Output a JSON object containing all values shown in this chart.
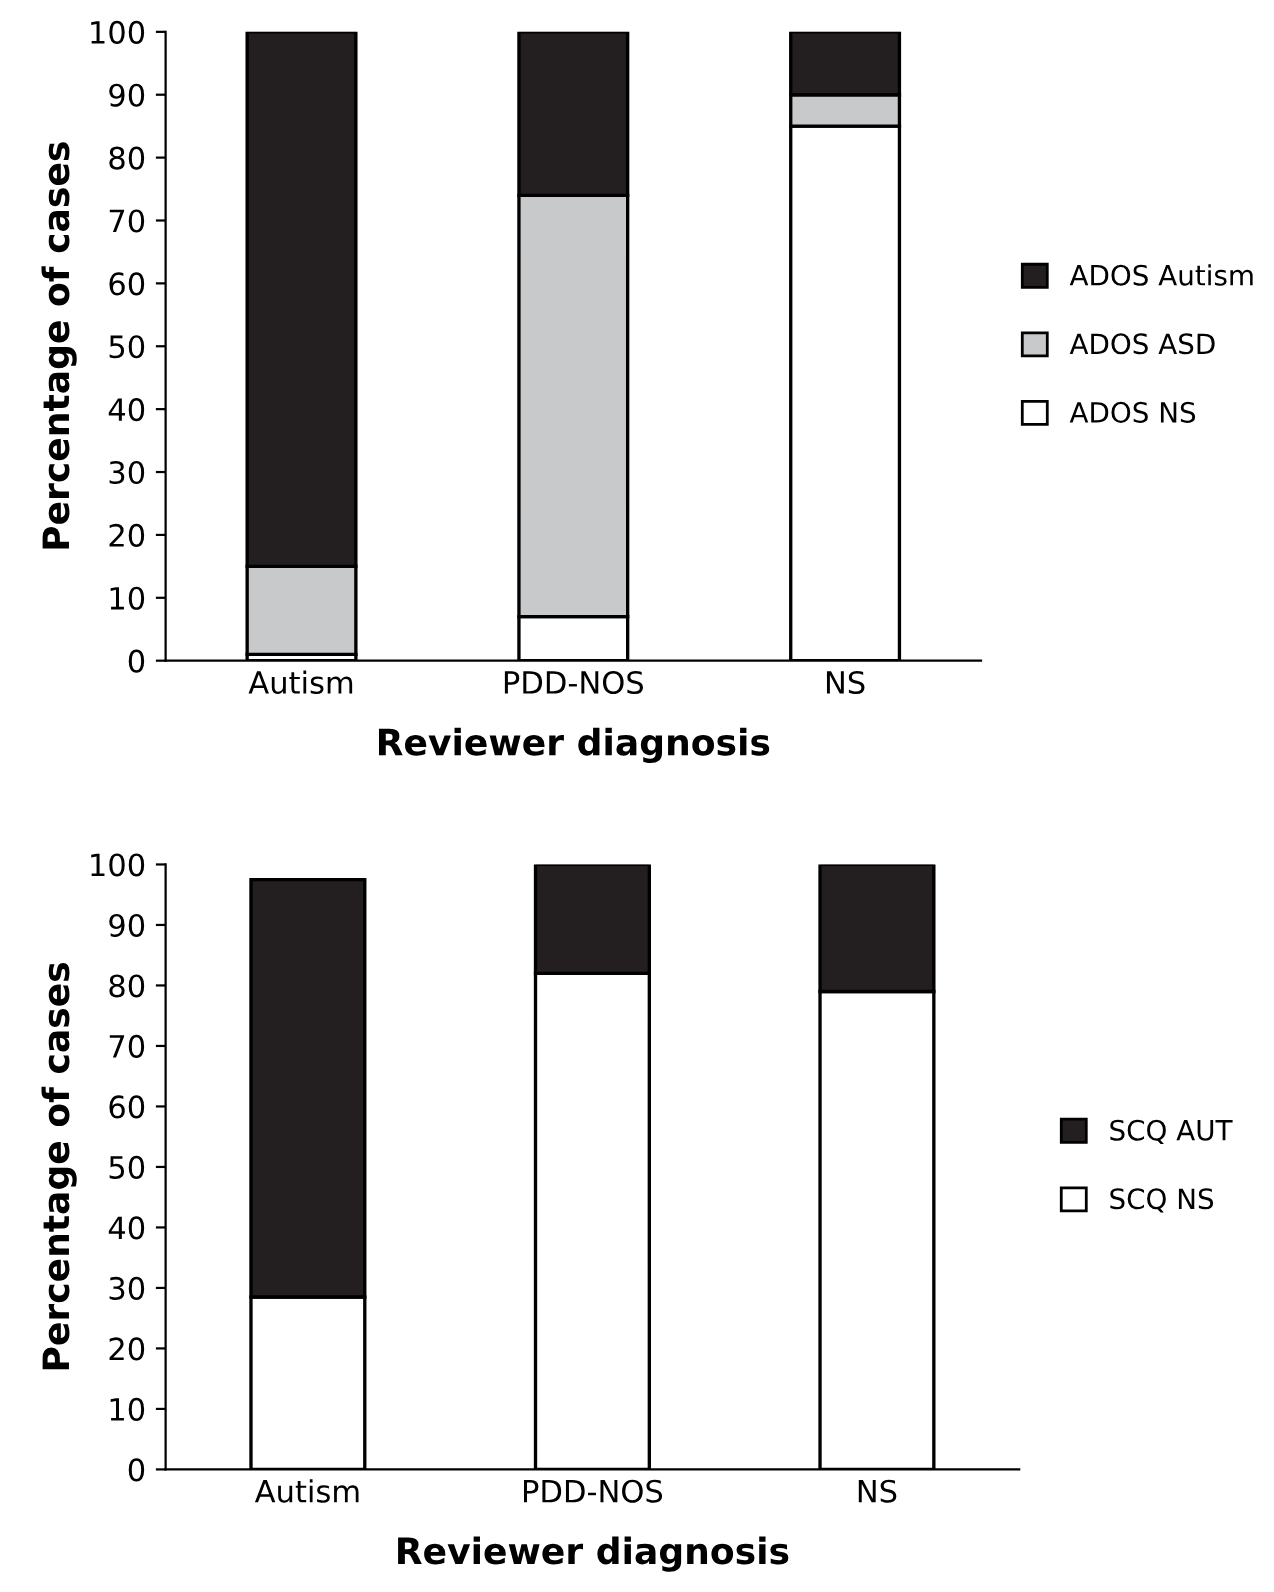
{
  "chart_data": [
    {
      "type": "bar",
      "stacked": true,
      "categories": [
        "Autism",
        "PDD-NOS",
        "NS"
      ],
      "xlabel": "Reviewer diagnosis",
      "ylabel": "Percentage of cases",
      "ylim": [
        0,
        100
      ],
      "yticks": [
        0,
        10,
        20,
        30,
        40,
        50,
        60,
        70,
        80,
        90,
        100
      ],
      "legend": "right",
      "grid": false,
      "series": [
        {
          "name": "ADOS NS",
          "color": "#ffffff",
          "values": [
            1,
            7,
            85
          ]
        },
        {
          "name": "ADOS ASD",
          "color": "#c8c9cb",
          "values": [
            14,
            67,
            5
          ]
        },
        {
          "name": "ADOS Autism",
          "color": "#231f20",
          "values": [
            85,
            26,
            10
          ]
        }
      ]
    },
    {
      "type": "bar",
      "stacked": true,
      "categories": [
        "Autism",
        "PDD-NOS",
        "NS"
      ],
      "xlabel": "Reviewer diagnosis",
      "ylabel": "Percentage of cases",
      "ylim": [
        0,
        100
      ],
      "yticks": [
        0,
        10,
        20,
        30,
        40,
        50,
        60,
        70,
        80,
        90,
        100
      ],
      "legend": "right",
      "grid": false,
      "series": [
        {
          "name": "SCQ NS",
          "color": "#ffffff",
          "values": [
            28.5,
            82,
            79
          ]
        },
        {
          "name": "SCQ AUT",
          "color": "#231f20",
          "values": [
            69,
            18,
            21
          ]
        }
      ]
    }
  ]
}
